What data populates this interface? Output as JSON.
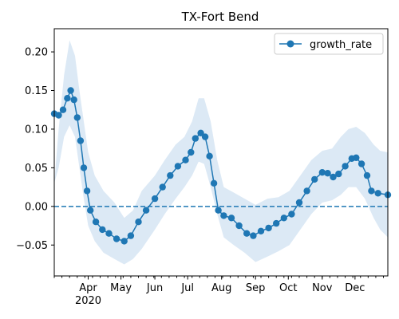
{
  "chart_data": {
    "type": "line",
    "title": "TX-Fort Bend",
    "xlabel": "",
    "ylabel": "",
    "x_start": "2020-03-01",
    "x_end": "2020-12-31",
    "ylim": [
      -0.09,
      0.23
    ],
    "yticks": [
      -0.05,
      0.0,
      0.05,
      0.1,
      0.15,
      0.2
    ],
    "ytick_labels": [
      "−0.05",
      "0.00",
      "0.05",
      "0.10",
      "0.15",
      "0.20"
    ],
    "xtick_labels": [
      "Apr",
      "May",
      "Jun",
      "Jul",
      "Aug",
      "Sep",
      "Oct",
      "Nov",
      "Dec"
    ],
    "xtick_dates": [
      "2020-04-01",
      "2020-05-01",
      "2020-06-01",
      "2020-07-01",
      "2020-08-01",
      "2020-09-01",
      "2020-10-01",
      "2020-11-01",
      "2020-12-01"
    ],
    "year_label": "2020",
    "legend": {
      "position": "top-right",
      "entries": [
        "growth_rate"
      ]
    },
    "reference_line": {
      "y": 0,
      "style": "dashed"
    },
    "colors": {
      "series": "#1f77b4",
      "band": "#dce9f5"
    },
    "series": [
      {
        "name": "growth_rate",
        "points": [
          [
            "2020-03-01",
            0.12
          ],
          [
            "2020-03-05",
            0.118
          ],
          [
            "2020-03-09",
            0.125
          ],
          [
            "2020-03-13",
            0.14
          ],
          [
            "2020-03-16",
            0.15
          ],
          [
            "2020-03-19",
            0.138
          ],
          [
            "2020-03-22",
            0.115
          ],
          [
            "2020-03-25",
            0.085
          ],
          [
            "2020-03-28",
            0.05
          ],
          [
            "2020-03-31",
            0.02
          ],
          [
            "2020-04-03",
            -0.005
          ],
          [
            "2020-04-08",
            -0.02
          ],
          [
            "2020-04-14",
            -0.03
          ],
          [
            "2020-04-20",
            -0.035
          ],
          [
            "2020-04-27",
            -0.042
          ],
          [
            "2020-05-04",
            -0.045
          ],
          [
            "2020-05-10",
            -0.038
          ],
          [
            "2020-05-17",
            -0.02
          ],
          [
            "2020-05-24",
            -0.005
          ],
          [
            "2020-06-01",
            0.01
          ],
          [
            "2020-06-08",
            0.025
          ],
          [
            "2020-06-15",
            0.04
          ],
          [
            "2020-06-22",
            0.052
          ],
          [
            "2020-06-29",
            0.06
          ],
          [
            "2020-07-04",
            0.07
          ],
          [
            "2020-07-08",
            0.088
          ],
          [
            "2020-07-13",
            0.095
          ],
          [
            "2020-07-17",
            0.09
          ],
          [
            "2020-07-21",
            0.065
          ],
          [
            "2020-07-25",
            0.03
          ],
          [
            "2020-07-29",
            -0.005
          ],
          [
            "2020-08-03",
            -0.012
          ],
          [
            "2020-08-10",
            -0.015
          ],
          [
            "2020-08-17",
            -0.025
          ],
          [
            "2020-08-24",
            -0.035
          ],
          [
            "2020-08-30",
            -0.038
          ],
          [
            "2020-09-06",
            -0.032
          ],
          [
            "2020-09-13",
            -0.028
          ],
          [
            "2020-09-20",
            -0.022
          ],
          [
            "2020-09-27",
            -0.015
          ],
          [
            "2020-10-04",
            -0.01
          ],
          [
            "2020-10-11",
            0.005
          ],
          [
            "2020-10-18",
            0.02
          ],
          [
            "2020-10-25",
            0.035
          ],
          [
            "2020-11-01",
            0.044
          ],
          [
            "2020-11-06",
            0.043
          ],
          [
            "2020-11-11",
            0.038
          ],
          [
            "2020-11-16",
            0.042
          ],
          [
            "2020-11-22",
            0.052
          ],
          [
            "2020-11-28",
            0.062
          ],
          [
            "2020-12-02",
            0.063
          ],
          [
            "2020-12-07",
            0.055
          ],
          [
            "2020-12-12",
            0.04
          ],
          [
            "2020-12-16",
            0.02
          ],
          [
            "2020-12-22",
            0.017
          ],
          [
            "2020-12-31",
            0.015
          ]
        ],
        "band_upper": [
          [
            "2020-03-01",
            0.03
          ],
          [
            "2020-03-05",
            0.1
          ],
          [
            "2020-03-10",
            0.17
          ],
          [
            "2020-03-15",
            0.215
          ],
          [
            "2020-03-20",
            0.195
          ],
          [
            "2020-03-24",
            0.15
          ],
          [
            "2020-03-28",
            0.11
          ],
          [
            "2020-04-01",
            0.07
          ],
          [
            "2020-04-07",
            0.04
          ],
          [
            "2020-04-15",
            0.02
          ],
          [
            "2020-04-25",
            0.005
          ],
          [
            "2020-05-04",
            -0.015
          ],
          [
            "2020-05-12",
            -0.005
          ],
          [
            "2020-05-20",
            0.02
          ],
          [
            "2020-06-01",
            0.04
          ],
          [
            "2020-06-10",
            0.06
          ],
          [
            "2020-06-20",
            0.08
          ],
          [
            "2020-06-28",
            0.09
          ],
          [
            "2020-07-05",
            0.11
          ],
          [
            "2020-07-11",
            0.14
          ],
          [
            "2020-07-16",
            0.14
          ],
          [
            "2020-07-22",
            0.11
          ],
          [
            "2020-07-28",
            0.06
          ],
          [
            "2020-08-03",
            0.025
          ],
          [
            "2020-08-12",
            0.018
          ],
          [
            "2020-08-22",
            0.01
          ],
          [
            "2020-09-01",
            0.002
          ],
          [
            "2020-09-12",
            0.01
          ],
          [
            "2020-09-22",
            0.012
          ],
          [
            "2020-10-02",
            0.02
          ],
          [
            "2020-10-12",
            0.04
          ],
          [
            "2020-10-22",
            0.06
          ],
          [
            "2020-11-01",
            0.072
          ],
          [
            "2020-11-10",
            0.075
          ],
          [
            "2020-11-18",
            0.09
          ],
          [
            "2020-11-25",
            0.1
          ],
          [
            "2020-12-02",
            0.103
          ],
          [
            "2020-12-10",
            0.095
          ],
          [
            "2020-12-18",
            0.08
          ],
          [
            "2020-12-24",
            0.072
          ],
          [
            "2020-12-31",
            0.07
          ]
        ],
        "band_lower": [
          [
            "2020-03-01",
            0.03
          ],
          [
            "2020-03-05",
            0.05
          ],
          [
            "2020-03-10",
            0.09
          ],
          [
            "2020-03-15",
            0.105
          ],
          [
            "2020-03-20",
            0.09
          ],
          [
            "2020-03-24",
            0.05
          ],
          [
            "2020-03-28",
            0.01
          ],
          [
            "2020-04-01",
            -0.025
          ],
          [
            "2020-04-07",
            -0.045
          ],
          [
            "2020-04-15",
            -0.06
          ],
          [
            "2020-04-25",
            -0.068
          ],
          [
            "2020-05-04",
            -0.075
          ],
          [
            "2020-05-12",
            -0.068
          ],
          [
            "2020-05-20",
            -0.055
          ],
          [
            "2020-06-01",
            -0.03
          ],
          [
            "2020-06-10",
            -0.01
          ],
          [
            "2020-06-20",
            0.01
          ],
          [
            "2020-06-28",
            0.025
          ],
          [
            "2020-07-05",
            0.04
          ],
          [
            "2020-07-11",
            0.058
          ],
          [
            "2020-07-16",
            0.055
          ],
          [
            "2020-07-22",
            0.025
          ],
          [
            "2020-07-28",
            -0.01
          ],
          [
            "2020-08-03",
            -0.04
          ],
          [
            "2020-08-12",
            -0.05
          ],
          [
            "2020-08-22",
            -0.06
          ],
          [
            "2020-09-01",
            -0.072
          ],
          [
            "2020-09-12",
            -0.065
          ],
          [
            "2020-09-22",
            -0.058
          ],
          [
            "2020-10-02",
            -0.05
          ],
          [
            "2020-10-12",
            -0.03
          ],
          [
            "2020-10-22",
            -0.01
          ],
          [
            "2020-11-01",
            0.005
          ],
          [
            "2020-11-10",
            0.008
          ],
          [
            "2020-11-18",
            0.015
          ],
          [
            "2020-11-25",
            0.025
          ],
          [
            "2020-12-02",
            0.025
          ],
          [
            "2020-12-10",
            0.01
          ],
          [
            "2020-12-18",
            -0.015
          ],
          [
            "2020-12-24",
            -0.03
          ],
          [
            "2020-12-31",
            -0.04
          ]
        ]
      }
    ]
  }
}
